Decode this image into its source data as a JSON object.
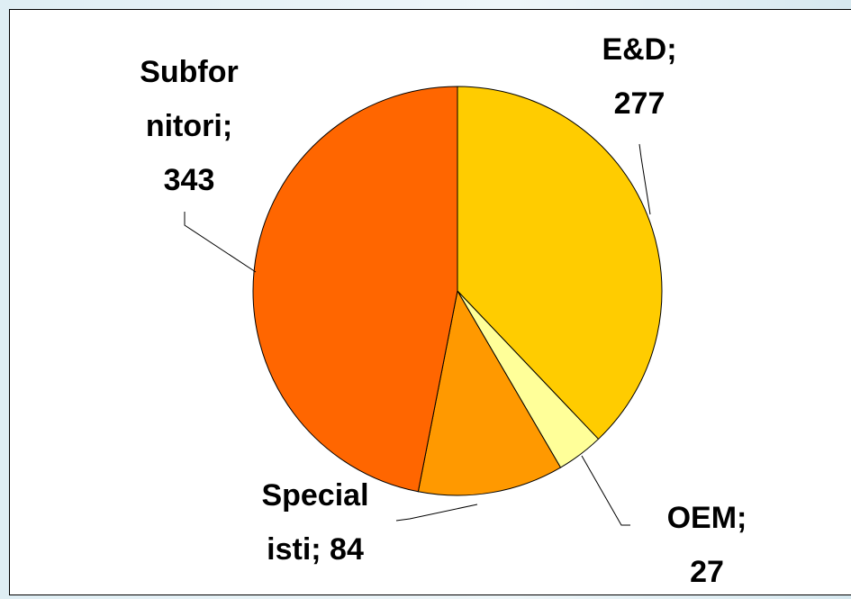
{
  "chart_data": {
    "type": "pie",
    "values": [
      277,
      27,
      84,
      343
    ],
    "value_labels": [
      "E&D;\n277",
      "OEM;\n27",
      "Special\nisti; 84",
      "Subfor\nnitori;\n343"
    ],
    "colors": [
      "#ffcc00",
      "#ffff99",
      "#ff9900",
      "#ff6600"
    ]
  }
}
